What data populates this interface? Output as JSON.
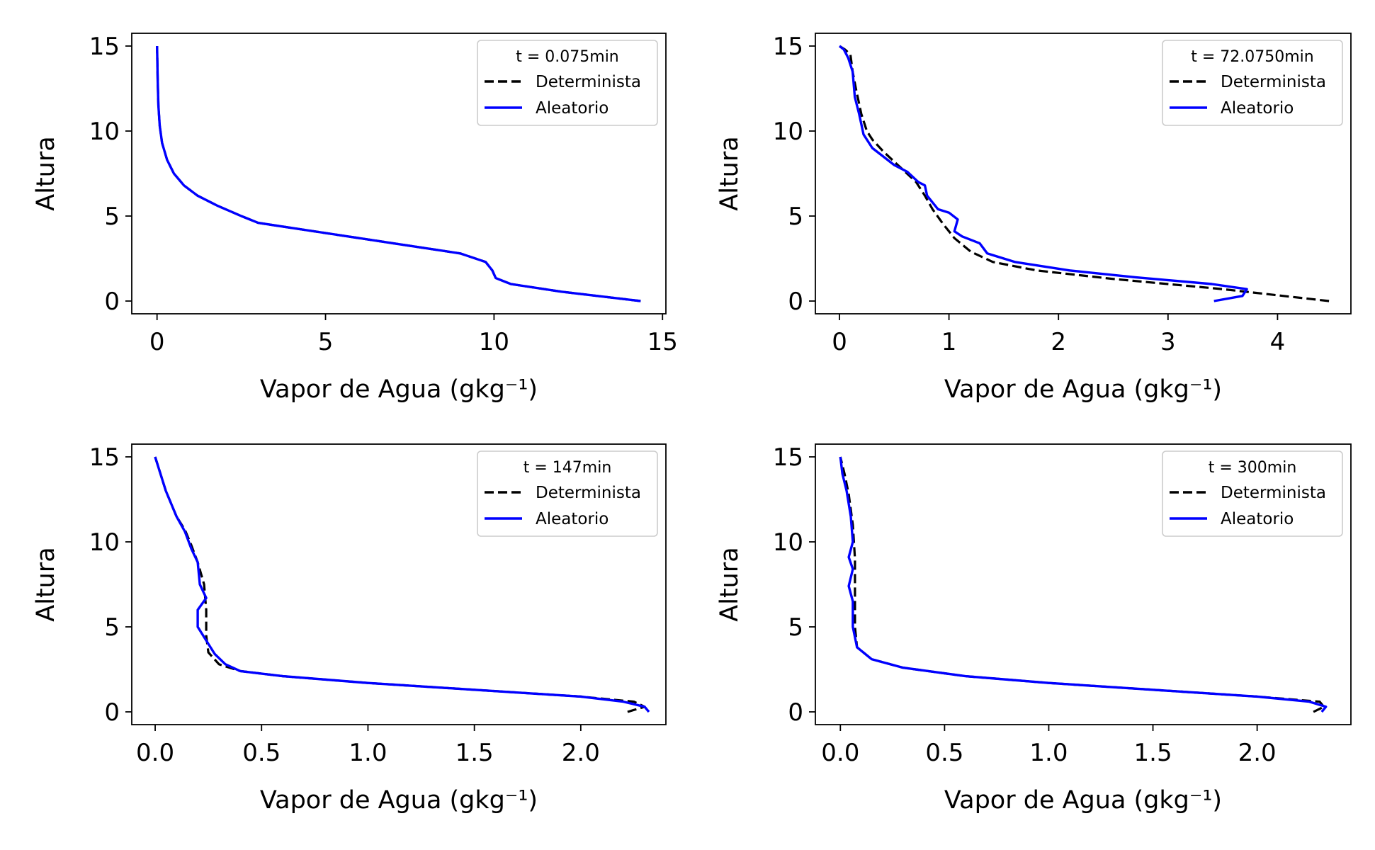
{
  "figure": {
    "background": "#ffffff",
    "series_colors": {
      "Determinista": "#000000",
      "Aleatorio": "#0000ff"
    }
  },
  "chart_data": [
    {
      "type": "line",
      "legend_title": "t = 0.075min",
      "xlabel": "Vapor de Agua (gkg⁻¹)",
      "ylabel": "Altura",
      "xlim": [
        -0.75,
        15.1
      ],
      "ylim": [
        -0.75,
        15.75
      ],
      "xticks": [
        0,
        5,
        10,
        15
      ],
      "xtick_labels": [
        "0",
        "5",
        "10",
        "15"
      ],
      "yticks": [
        0,
        5,
        10,
        15
      ],
      "ytick_labels": [
        "0",
        "5",
        "10",
        "15"
      ],
      "legend": "top-right",
      "grid": false,
      "series": [
        {
          "name": "Determinista",
          "style": "dashed",
          "color": "#000000",
          "x": [
            14.35,
            12.0,
            10.5,
            10.05,
            9.95,
            9.75,
            9.0,
            7.0,
            5.0,
            3.0,
            2.5,
            1.8,
            1.2,
            0.8,
            0.5,
            0.3,
            0.15,
            0.08,
            0.04,
            0.02,
            0.0
          ],
          "y": [
            0.0,
            0.55,
            1.0,
            1.35,
            1.8,
            2.3,
            2.8,
            3.4,
            4.0,
            4.6,
            5.0,
            5.6,
            6.2,
            6.8,
            7.5,
            8.3,
            9.3,
            10.3,
            11.5,
            13.0,
            15.0
          ]
        },
        {
          "name": "Aleatorio",
          "style": "solid",
          "color": "#0000ff",
          "x": [
            14.35,
            12.0,
            10.5,
            10.05,
            9.95,
            9.75,
            9.0,
            7.0,
            5.0,
            3.0,
            2.5,
            1.8,
            1.2,
            0.8,
            0.5,
            0.3,
            0.15,
            0.08,
            0.04,
            0.02,
            0.0
          ],
          "y": [
            0.0,
            0.55,
            1.0,
            1.35,
            1.8,
            2.3,
            2.8,
            3.4,
            4.0,
            4.6,
            5.0,
            5.6,
            6.2,
            6.8,
            7.5,
            8.3,
            9.3,
            10.3,
            11.5,
            13.0,
            15.0
          ]
        }
      ]
    },
    {
      "type": "line",
      "legend_title": "t = 72.0750min",
      "xlabel": "Vapor de Agua (gkg⁻¹)",
      "ylabel": "Altura",
      "xlim": [
        -0.22,
        4.67
      ],
      "ylim": [
        -0.75,
        15.75
      ],
      "xticks": [
        0,
        1,
        2,
        3,
        4
      ],
      "xtick_labels": [
        "0",
        "1",
        "2",
        "3",
        "4"
      ],
      "yticks": [
        0,
        5,
        10,
        15
      ],
      "ytick_labels": [
        "0",
        "5",
        "10",
        "15"
      ],
      "legend": "top-right",
      "grid": false,
      "series": [
        {
          "name": "Determinista",
          "style": "dashed",
          "color": "#000000",
          "x": [
            4.47,
            3.5,
            2.5,
            1.8,
            1.4,
            1.2,
            1.05,
            0.95,
            0.85,
            0.78,
            0.7,
            0.6,
            0.5,
            0.4,
            0.3,
            0.25,
            0.2,
            0.15,
            0.12,
            0.1,
            0.05,
            0.0
          ],
          "y": [
            0.0,
            0.7,
            1.3,
            1.8,
            2.3,
            2.9,
            3.7,
            4.5,
            5.4,
            6.2,
            7.0,
            7.6,
            8.2,
            8.8,
            9.5,
            10.0,
            11.0,
            12.5,
            13.5,
            14.5,
            14.8,
            15.0
          ]
        },
        {
          "name": "Aleatorio",
          "style": "solid",
          "color": "#0000ff",
          "x": [
            3.42,
            3.68,
            3.72,
            3.4,
            2.7,
            2.1,
            1.6,
            1.35,
            1.28,
            1.12,
            1.05,
            1.08,
            1.0,
            0.9,
            0.85,
            0.8,
            0.78,
            0.72,
            0.62,
            0.5,
            0.4,
            0.3,
            0.22,
            0.18,
            0.14,
            0.12,
            0.08,
            0.04,
            0.0
          ],
          "y": [
            0.0,
            0.3,
            0.7,
            1.0,
            1.4,
            1.8,
            2.3,
            2.8,
            3.4,
            3.8,
            4.1,
            4.8,
            5.2,
            5.4,
            5.8,
            6.2,
            6.8,
            7.0,
            7.6,
            8.0,
            8.5,
            9.0,
            9.8,
            11.0,
            12.0,
            13.5,
            14.3,
            14.8,
            15.0
          ]
        }
      ]
    },
    {
      "type": "line",
      "legend_title": "t = 147min",
      "xlabel": "Vapor de Agua (gkg⁻¹)",
      "ylabel": "Altura",
      "xlim": [
        -0.11,
        2.4
      ],
      "ylim": [
        -0.75,
        15.75
      ],
      "xticks": [
        0.0,
        0.5,
        1.0,
        1.5,
        2.0
      ],
      "xtick_labels": [
        "0.0",
        "0.5",
        "1.0",
        "1.5",
        "2.0"
      ],
      "yticks": [
        0,
        5,
        10,
        15
      ],
      "ytick_labels": [
        "0",
        "5",
        "10",
        "15"
      ],
      "legend": "top-right",
      "grid": false,
      "series": [
        {
          "name": "Determinista",
          "style": "dashed",
          "color": "#000000",
          "x": [
            2.22,
            2.3,
            2.25,
            2.0,
            1.5,
            1.0,
            0.6,
            0.4,
            0.3,
            0.25,
            0.24,
            0.24,
            0.23,
            0.2,
            0.17,
            0.14,
            0.1,
            0.05,
            0.0
          ],
          "y": [
            0.0,
            0.3,
            0.6,
            0.9,
            1.3,
            1.7,
            2.1,
            2.4,
            2.8,
            3.5,
            4.5,
            6.0,
            7.5,
            8.8,
            9.8,
            10.7,
            11.5,
            13.0,
            15.0
          ]
        },
        {
          "name": "Aleatorio",
          "style": "solid",
          "color": "#0000ff",
          "x": [
            2.32,
            2.3,
            2.2,
            2.0,
            1.5,
            1.0,
            0.6,
            0.4,
            0.33,
            0.28,
            0.25,
            0.2,
            0.2,
            0.24,
            0.21,
            0.2,
            0.17,
            0.14,
            0.1,
            0.05,
            0.0
          ],
          "y": [
            0.0,
            0.3,
            0.6,
            0.9,
            1.3,
            1.7,
            2.1,
            2.4,
            2.8,
            3.4,
            4.0,
            5.0,
            6.0,
            6.7,
            7.5,
            8.8,
            9.6,
            10.6,
            11.5,
            13.0,
            15.0
          ]
        }
      ]
    },
    {
      "type": "line",
      "legend_title": "t = 300min",
      "xlabel": "Vapor de Agua (gkg⁻¹)",
      "ylabel": "Altura",
      "xlim": [
        -0.12,
        2.45
      ],
      "ylim": [
        -0.75,
        15.75
      ],
      "xticks": [
        0.0,
        0.5,
        1.0,
        1.5,
        2.0
      ],
      "xtick_labels": [
        "0.0",
        "0.5",
        "1.0",
        "1.5",
        "2.0"
      ],
      "yticks": [
        0,
        5,
        10,
        15
      ],
      "ytick_labels": [
        "0",
        "5",
        "10",
        "15"
      ],
      "legend": "top-right",
      "grid": false,
      "series": [
        {
          "name": "Determinista",
          "style": "dashed",
          "color": "#000000",
          "x": [
            2.27,
            2.32,
            2.3,
            2.0,
            1.5,
            1.0,
            0.6,
            0.3,
            0.15,
            0.08,
            0.07,
            0.07,
            0.07,
            0.06,
            0.04,
            0.02,
            0.0
          ],
          "y": [
            0.0,
            0.3,
            0.6,
            0.9,
            1.3,
            1.7,
            2.1,
            2.6,
            3.1,
            3.8,
            5.0,
            7.0,
            9.0,
            11.0,
            12.8,
            14.0,
            15.0
          ]
        },
        {
          "name": "Aleatorio",
          "style": "solid",
          "color": "#0000ff",
          "x": [
            2.31,
            2.33,
            2.25,
            2.0,
            1.5,
            1.0,
            0.6,
            0.3,
            0.15,
            0.08,
            0.06,
            0.06,
            0.04,
            0.06,
            0.04,
            0.06,
            0.05,
            0.03,
            0.01,
            0.0
          ],
          "y": [
            0.0,
            0.3,
            0.6,
            0.9,
            1.3,
            1.7,
            2.1,
            2.6,
            3.1,
            3.8,
            5.0,
            6.5,
            7.4,
            8.4,
            9.1,
            10.0,
            11.5,
            13.0,
            14.0,
            15.0
          ]
        }
      ]
    }
  ]
}
